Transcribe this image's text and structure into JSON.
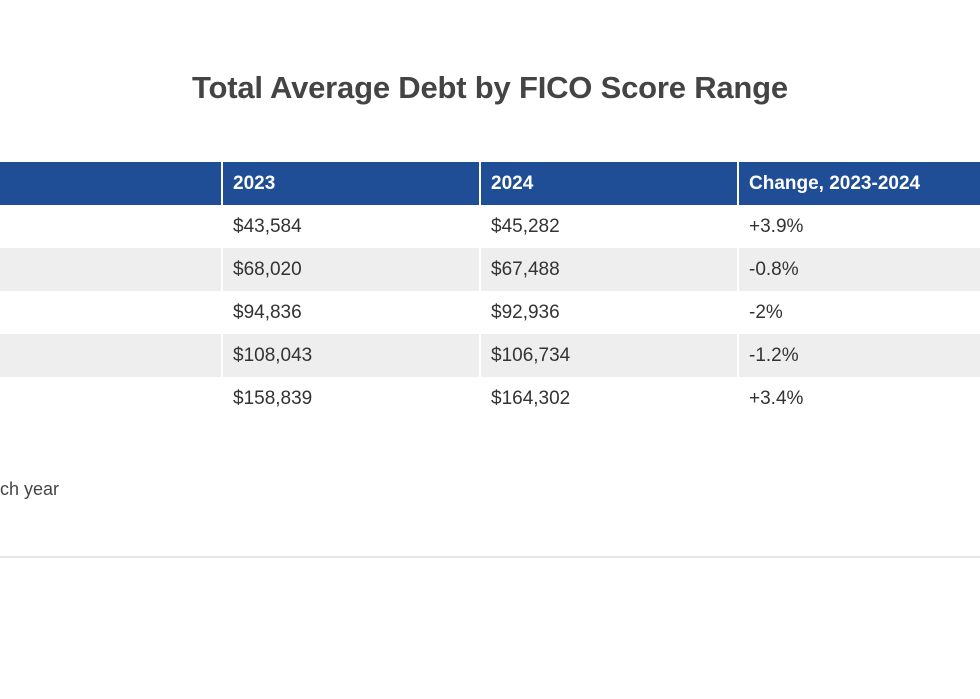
{
  "chart_data": {
    "type": "table",
    "title": "Total Average Debt by FICO Score Range",
    "columns": [
      "",
      "2023",
      "2024",
      "Change, 2023-2024"
    ],
    "rows": [
      [
        "",
        "$43,584",
        "$45,282",
        "+3.9%"
      ],
      [
        "",
        "$68,020",
        "$67,488",
        "-0.8%"
      ],
      [
        "",
        "$94,836",
        "$92,936",
        "-2%"
      ],
      [
        "",
        "$108,043",
        "$106,734",
        "-1.2%"
      ],
      [
        "",
        "$158,839",
        "$164,302",
        "+3.4%"
      ]
    ],
    "values_2023": [
      43584,
      68020,
      94836,
      108043,
      158839
    ],
    "values_2024": [
      45282,
      67488,
      92936,
      106734,
      164302
    ],
    "change_pct": [
      3.9,
      -0.8,
      -2,
      -1.2,
      3.4
    ]
  },
  "footnote": "ch year",
  "colors": {
    "header_bg": "#1f4e96",
    "header_text": "#ffffff",
    "stripe": "#eeeeee"
  }
}
